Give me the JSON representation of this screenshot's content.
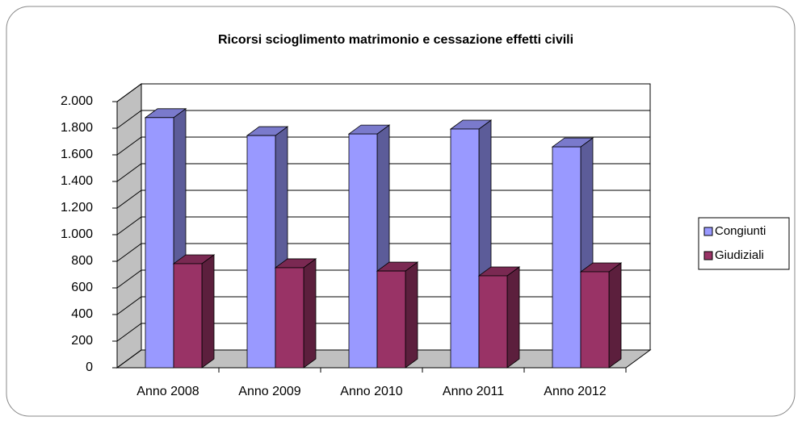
{
  "chart_data": {
    "type": "bar3d",
    "title": "Ricorsi scioglimento matrimonio e cessazione effetti civili",
    "categories": [
      "Anno 2008",
      "Anno 2009",
      "Anno 2010",
      "Anno 2011",
      "Anno 2012"
    ],
    "series": [
      {
        "name": "Congiunti",
        "color": "#9999ff",
        "values": [
          1880,
          1745,
          1757,
          1794,
          1660
        ]
      },
      {
        "name": "Giudiziali",
        "color": "#993366",
        "values": [
          782,
          752,
          727,
          691,
          721
        ]
      }
    ],
    "ylim": [
      0,
      2000
    ],
    "yticks": [
      0,
      200,
      400,
      600,
      800,
      {
        "value": 1000,
        "label": "1.000"
      },
      {
        "value": 1200,
        "label": "1.200"
      },
      {
        "value": 1400,
        "label": "1.400"
      },
      {
        "value": 1600,
        "label": "1.600"
      },
      {
        "value": 1800,
        "label": "1.800"
      },
      {
        "value": 2000,
        "label": "2.000"
      }
    ],
    "grid": true,
    "legend": "right"
  }
}
